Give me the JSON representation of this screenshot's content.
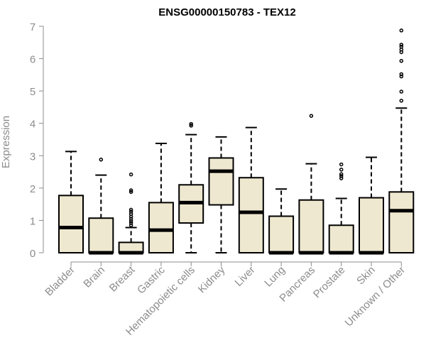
{
  "chart_data": {
    "type": "boxplot",
    "title": "ENSG00000150783 - TEX12",
    "xlabel": "",
    "ylabel": "Expression",
    "ylim": [
      0,
      7
    ],
    "yticks": [
      0,
      1,
      2,
      3,
      4,
      5,
      6,
      7
    ],
    "box_fill": "#efe8d0",
    "axis_color": "#8c8c8c",
    "categories": [
      "Bladder",
      "Brain",
      "Breast",
      "Gastric",
      "Hematopoietic cells",
      "Kidney",
      "Liver",
      "Lung",
      "Pancreas",
      "Prostate",
      "Skin",
      "Unknown / Other"
    ],
    "boxes": [
      {
        "category": "Bladder",
        "whisker_low": 0,
        "q1": 0,
        "median": 0.78,
        "q3": 1.77,
        "whisker_high": 3.13,
        "outliers": []
      },
      {
        "category": "Brain",
        "whisker_low": 0,
        "q1": 0,
        "median": 0,
        "q3": 1.07,
        "whisker_high": 2.4,
        "outliers": [
          2.88
        ]
      },
      {
        "category": "Breast",
        "whisker_low": 0,
        "q1": 0,
        "median": 0,
        "q3": 0.32,
        "whisker_high": 0.78,
        "outliers": [
          0.85,
          0.92,
          0.98,
          1.05,
          1.12,
          1.2,
          1.27,
          1.33,
          1.88,
          1.93,
          2.42
        ]
      },
      {
        "category": "Gastric",
        "whisker_low": 0,
        "q1": 0,
        "median": 0.7,
        "q3": 1.55,
        "whisker_high": 3.38,
        "outliers": []
      },
      {
        "category": "Hematopoietic cells",
        "whisker_low": 0,
        "q1": 0.92,
        "median": 1.55,
        "q3": 2.1,
        "whisker_high": 3.65,
        "outliers": [
          3.93,
          3.98
        ]
      },
      {
        "category": "Kidney",
        "whisker_low": 0,
        "q1": 1.48,
        "median": 2.52,
        "q3": 2.93,
        "whisker_high": 3.58,
        "outliers": []
      },
      {
        "category": "Liver",
        "whisker_low": 0,
        "q1": 0,
        "median": 1.25,
        "q3": 2.32,
        "whisker_high": 3.87,
        "outliers": []
      },
      {
        "category": "Lung",
        "whisker_low": 0,
        "q1": 0,
        "median": 0,
        "q3": 1.13,
        "whisker_high": 1.97,
        "outliers": []
      },
      {
        "category": "Pancreas",
        "whisker_low": 0,
        "q1": 0,
        "median": 0,
        "q3": 1.63,
        "whisker_high": 2.75,
        "outliers": [
          4.23
        ]
      },
      {
        "category": "Prostate",
        "whisker_low": 0,
        "q1": 0,
        "median": 0,
        "q3": 0.85,
        "whisker_high": 1.68,
        "outliers": [
          2.3,
          2.37,
          2.43,
          2.57,
          2.73
        ]
      },
      {
        "category": "Skin",
        "whisker_low": 0,
        "q1": 0,
        "median": 0,
        "q3": 1.7,
        "whisker_high": 2.95,
        "outliers": []
      },
      {
        "category": "Unknown / Other",
        "whisker_low": 0,
        "q1": 0,
        "median": 1.3,
        "q3": 1.88,
        "whisker_high": 4.47,
        "outliers": [
          4.7,
          4.98,
          5.45,
          5.52,
          5.93,
          6.2,
          6.28,
          6.37,
          6.43,
          6.87
        ]
      }
    ]
  }
}
